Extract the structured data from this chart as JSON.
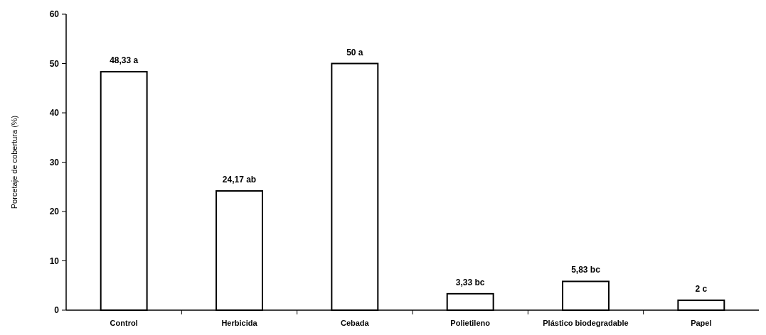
{
  "chart_data": {
    "type": "bar",
    "ylabel": "Porcetaje de cobertura (%)",
    "categories": [
      "Control",
      "Herbicida",
      "Cebada",
      "Polietileno",
      "Plástico biodegradable",
      "Papel"
    ],
    "values": [
      48.33,
      24.17,
      50,
      3.33,
      5.83,
      2
    ],
    "value_labels": [
      "48,33 a",
      "24,17 ab",
      "50 a",
      "3,33 bc",
      "5,83 bc",
      "2 c"
    ],
    "color": "#ffffff",
    "ylim": [
      0,
      60
    ],
    "yticks": [
      0,
      10,
      20,
      30,
      40,
      50,
      60
    ],
    "grid": false
  }
}
